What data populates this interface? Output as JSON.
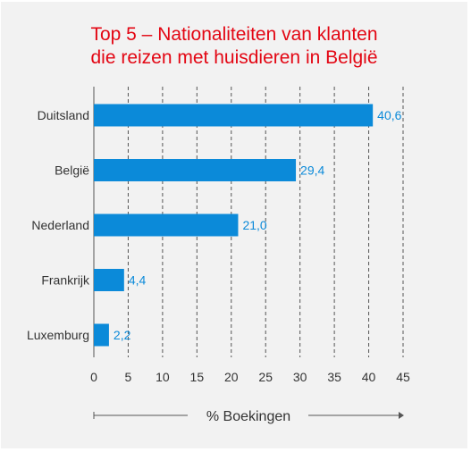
{
  "chart_data": {
    "type": "bar",
    "orientation": "horizontal",
    "title_lines": [
      "Top 5 – Nationaliteiten van klanten",
      "die reizen met huisdieren in België"
    ],
    "xlabel": "% Boekingen",
    "ylabel": "",
    "categories": [
      "Duitsland",
      "België",
      "Nederland",
      "Frankrijk",
      "Luxemburg"
    ],
    "values": [
      40.6,
      29.4,
      21.0,
      4.4,
      2.2
    ],
    "data_labels": [
      "40,6",
      "29,4",
      "21,0",
      "4,4",
      "2,2"
    ],
    "xlim": [
      0,
      45
    ],
    "xticks": [
      0,
      5,
      10,
      15,
      20,
      25,
      30,
      35,
      40,
      45
    ],
    "grid": "vertical-dashed",
    "legend": "none",
    "colors": {
      "bar": "#0b8ad9",
      "label": "#0b8ad9",
      "title": "#e30613",
      "text": "#333333",
      "grid": "#555555",
      "background": "#f2f2f2"
    }
  }
}
